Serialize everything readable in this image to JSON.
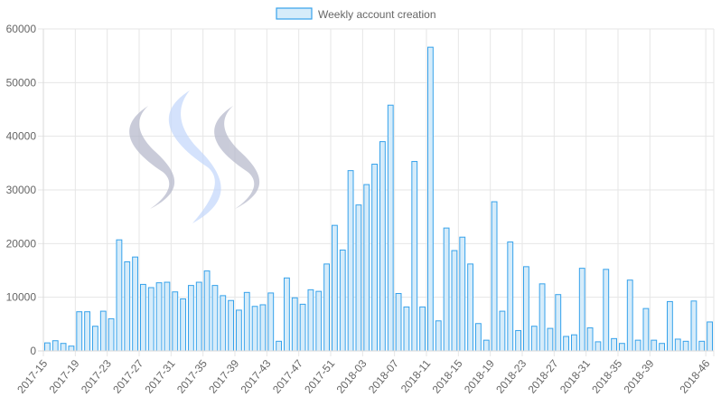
{
  "chart_data": {
    "type": "bar",
    "legend": {
      "label": "Weekly account creation",
      "position": "top"
    },
    "colors": {
      "bar_fill": "#d6ecfa",
      "bar_stroke": "#36a2eb",
      "grid": "#e6e6e6",
      "text": "#666666",
      "logo_dark": "#b3b6c9",
      "logo_light": "#c2d7fb"
    },
    "ylim": [
      0,
      60000
    ],
    "yticks": [
      0,
      10000,
      20000,
      30000,
      40000,
      50000,
      60000
    ],
    "grid": true,
    "decoration": "steem-logo-icon",
    "categories": [
      "2017-15",
      "2017-16",
      "2017-17",
      "2017-18",
      "2017-19",
      "2017-20",
      "2017-21",
      "2017-22",
      "2017-23",
      "2017-24",
      "2017-25",
      "2017-26",
      "2017-27",
      "2017-28",
      "2017-29",
      "2017-30",
      "2017-31",
      "2017-32",
      "2017-33",
      "2017-34",
      "2017-35",
      "2017-36",
      "2017-37",
      "2017-38",
      "2017-39",
      "2017-40",
      "2017-41",
      "2017-42",
      "2017-43",
      "2017-44",
      "2017-45",
      "2017-46",
      "2017-47",
      "2017-48",
      "2017-49",
      "2017-50",
      "2017-51",
      "2017-52",
      "2018-01",
      "2018-02",
      "2018-03",
      "2018-04",
      "2018-05",
      "2018-06",
      "2018-07",
      "2018-08",
      "2018-09",
      "2018-10",
      "2018-11",
      "2018-12",
      "2018-13",
      "2018-14",
      "2018-15",
      "2018-16",
      "2018-17",
      "2018-18",
      "2018-19",
      "2018-20",
      "2018-21",
      "2018-22",
      "2018-23",
      "2018-24",
      "2018-25",
      "2018-26",
      "2018-27",
      "2018-28",
      "2018-29",
      "2018-30",
      "2018-31",
      "2018-32",
      "2018-33",
      "2018-34",
      "2018-35",
      "2018-36",
      "2018-37",
      "2018-38",
      "2018-39",
      "2018-40",
      "2018-41",
      "2018-42",
      "2018-43",
      "2018-44",
      "2018-45",
      "2018-46"
    ],
    "xtick_labels": [
      "2017-15",
      "2017-19",
      "2017-23",
      "2017-27",
      "2017-31",
      "2017-35",
      "2017-39",
      "2017-43",
      "2017-47",
      "2017-51",
      "2018-03",
      "2018-07",
      "2018-11",
      "2018-15",
      "2018-19",
      "2018-23",
      "2018-27",
      "2018-31",
      "2018-35",
      "2018-39",
      "2018-46"
    ],
    "series": [
      {
        "name": "Weekly account creation",
        "values": [
          1500,
          1900,
          1400,
          900,
          7300,
          7300,
          4600,
          7400,
          6000,
          20700,
          16600,
          17500,
          12400,
          11800,
          12700,
          12800,
          11000,
          9700,
          12200,
          12800,
          14900,
          12200,
          10300,
          9400,
          7600,
          10900,
          8300,
          8600,
          10800,
          1800,
          13600,
          9900,
          8700,
          11400,
          11100,
          16200,
          23400,
          18800,
          33600,
          27200,
          31000,
          34800,
          39000,
          45800,
          10700,
          8200,
          35300,
          8200,
          56600,
          5600,
          22900,
          18700,
          21200,
          16200,
          5100,
          2000,
          27800,
          7400,
          20300,
          3800,
          15700,
          4600,
          12500,
          4200,
          10500,
          2700,
          3000,
          15400,
          4300,
          1700,
          15200,
          2300,
          1400,
          13200,
          2000,
          7900,
          2000,
          1400,
          9200,
          2200,
          1800,
          9300,
          1800,
          5400
        ]
      }
    ]
  }
}
